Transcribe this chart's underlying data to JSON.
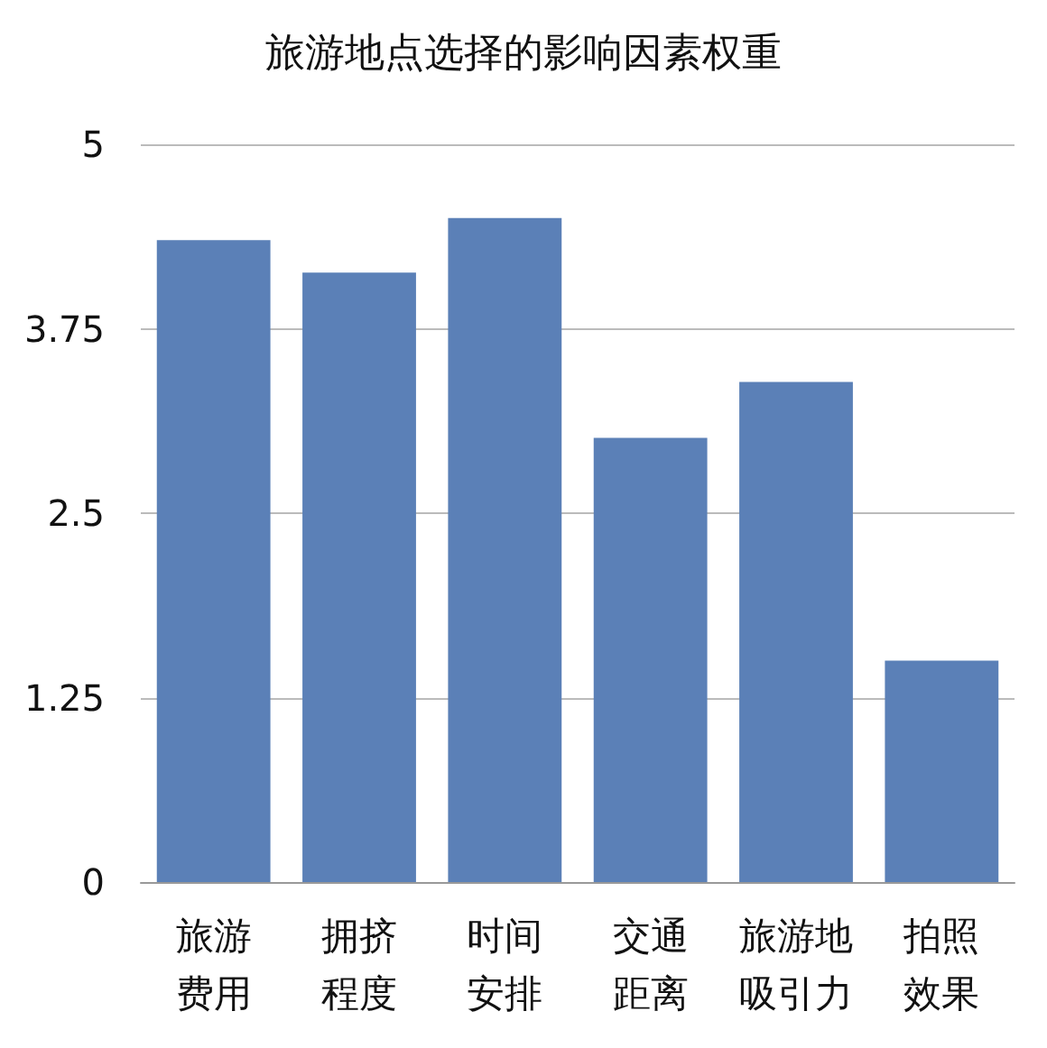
{
  "chart_data": {
    "type": "bar",
    "title": "旅游地点选择的影响因素权重",
    "categories": [
      "旅游费用",
      "拥挤程度",
      "时间安排",
      "交通距离",
      "旅游地吸引力",
      "拍照效果"
    ],
    "values": [
      4.35,
      4.13,
      4.5,
      3.01,
      3.39,
      1.5
    ],
    "color": "#5b80b7",
    "ylim": [
      0,
      5
    ],
    "yticks": [
      0,
      1.25,
      2.5,
      3.75,
      5
    ],
    "grid": "y"
  }
}
